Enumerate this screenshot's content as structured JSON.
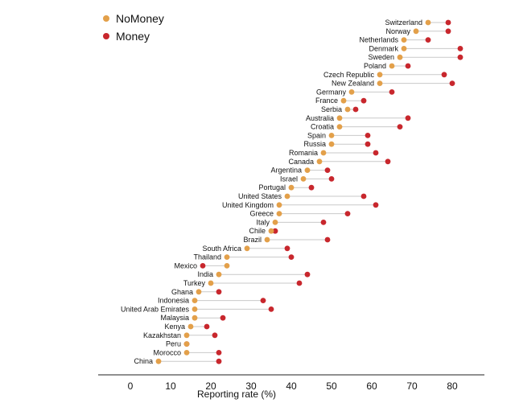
{
  "chart_data": {
    "type": "dumbbell",
    "title": "",
    "xlabel": "Reporting rate (%)",
    "ylabel": "",
    "xlim": [
      -8,
      88
    ],
    "xticks": [
      0,
      10,
      20,
      30,
      40,
      50,
      60,
      70,
      80
    ],
    "series": [
      {
        "name": "NoMoney",
        "color": "#E3A04A"
      },
      {
        "name": "Money",
        "color": "#C8272D"
      }
    ],
    "categories": [
      "Switzerland",
      "Norway",
      "Netherlands",
      "Denmark",
      "Sweden",
      "Poland",
      "Czech Republic",
      "New Zealand",
      "Germany",
      "France",
      "Serbia",
      "Australia",
      "Croatia",
      "Spain",
      "Russia",
      "Romania",
      "Canada",
      "Argentina",
      "Israel",
      "Portugal",
      "United States",
      "United Kingdom",
      "Greece",
      "Italy",
      "Chile",
      "Brazil",
      "South Africa",
      "Thailand",
      "Mexico",
      "India",
      "Turkey",
      "Ghana",
      "Indonesia",
      "United Arab Emirates",
      "Malaysia",
      "Kenya",
      "Kazakhstan",
      "Peru",
      "Morocco",
      "China"
    ],
    "nomoney": [
      74,
      71,
      68,
      68,
      67,
      65,
      62,
      62,
      55,
      53,
      54,
      52,
      52,
      50,
      50,
      48,
      47,
      44,
      43,
      40,
      39,
      37,
      37,
      36,
      35,
      34,
      29,
      24,
      24,
      22,
      20,
      17,
      16,
      16,
      16,
      15,
      14,
      14,
      14,
      7
    ],
    "money": [
      79,
      79,
      74,
      82,
      82,
      69,
      78,
      80,
      65,
      58,
      56,
      69,
      67,
      59,
      59,
      61,
      64,
      49,
      50,
      45,
      58,
      61,
      54,
      48,
      36,
      49,
      39,
      40,
      18,
      44,
      42,
      22,
      33,
      35,
      23,
      19,
      21,
      14,
      22,
      22
    ]
  }
}
